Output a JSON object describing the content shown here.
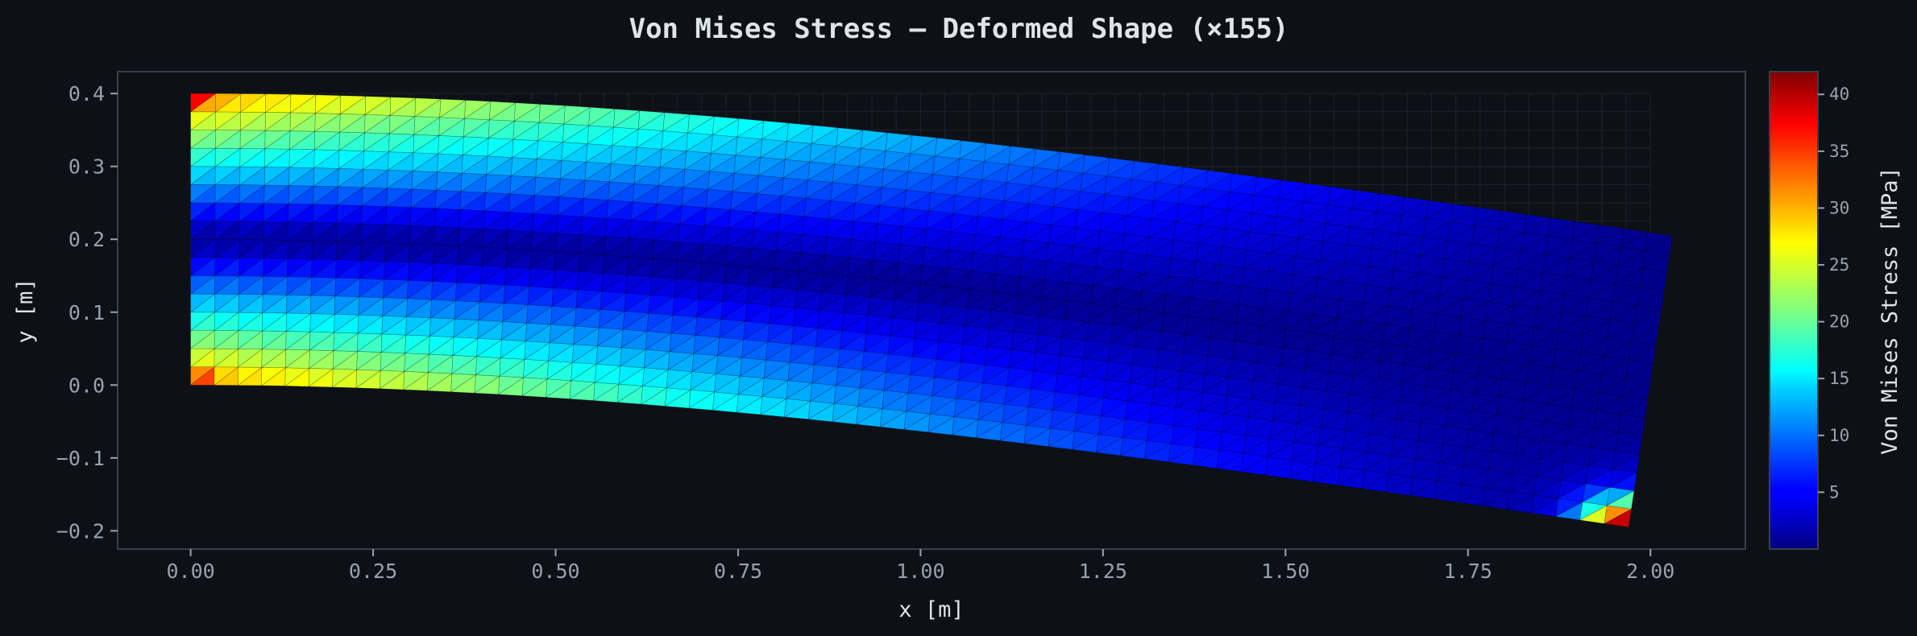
{
  "chart_data": {
    "type": "heatmap",
    "title": "Von Mises Stress — Deformed Shape (×155)",
    "xlabel": "x [m]",
    "ylabel": "y [m]",
    "xlim": [
      -0.1,
      2.13
    ],
    "ylim": [
      -0.225,
      0.43
    ],
    "xticks": [
      0.0,
      0.25,
      0.5,
      0.75,
      1.0,
      1.25,
      1.5,
      1.75,
      2.0
    ],
    "xtick_labels": [
      "0.00",
      "0.25",
      "0.50",
      "0.75",
      "1.00",
      "1.25",
      "1.50",
      "1.75",
      "2.00"
    ],
    "yticks": [
      0.4,
      0.3,
      0.2,
      0.1,
      0.0,
      -0.1,
      -0.2
    ],
    "ytick_labels": [
      "0.4",
      "0.3",
      "0.2",
      "0.1",
      "0.0",
      "−0.1",
      "−0.2"
    ],
    "mesh": {
      "undeformed_x": [
        0.0,
        2.0
      ],
      "undeformed_y": [
        0.0,
        0.4
      ],
      "divisions_x": 60,
      "divisions_y": 16,
      "element": "triangle",
      "deformation_scale": 155,
      "tip_corners": {
        "top_right": [
          2.03,
          0.205
        ],
        "bottom_right": [
          1.97,
          -0.195
        ]
      }
    },
    "stress": {
      "max_mpa": 42,
      "root_fiber_mpa": 30,
      "root_neutral_mpa": 0.5
    },
    "grid": false,
    "colorbar": {
      "label": "Von Mises Stress [MPa]",
      "colormap": "jet",
      "range": [
        0,
        42
      ],
      "ticks": [
        5,
        10,
        15,
        20,
        25,
        30,
        35,
        40
      ],
      "tick_labels": [
        "5",
        "10",
        "15",
        "20",
        "25",
        "30",
        "35",
        "40"
      ]
    }
  },
  "colors": {
    "background": "#0d1117",
    "axes_frame": "#3a3f47",
    "text": "#dfe3ea",
    "tick_text": "#9aa1ab",
    "undeformed_mesh": "#1d222a"
  }
}
